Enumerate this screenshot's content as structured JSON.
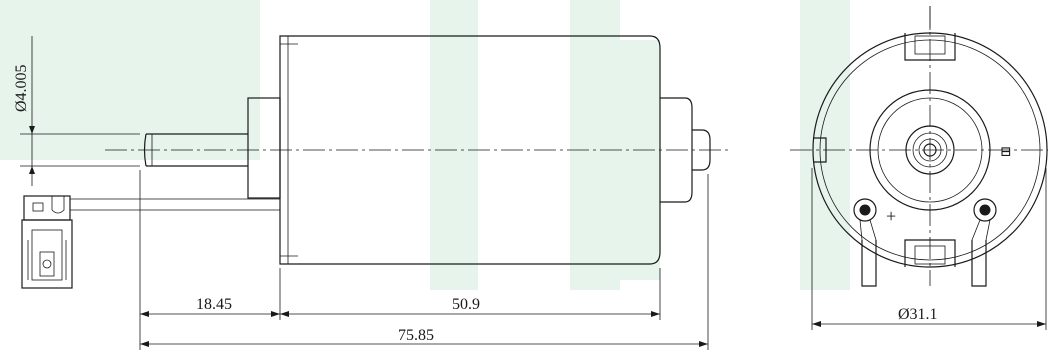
{
  "drawing": {
    "accent_color": "#3aa86b",
    "watermark_color": "#e6f4ec",
    "dimensions": {
      "shaft_diameter": "Ø4.005",
      "length_front": "18.45",
      "body_length": "50.9",
      "total_length": "75.85",
      "body_diameter": "Ø31.1"
    },
    "terminal_marks": {
      "positive": "+",
      "negative": "⊟"
    }
  }
}
